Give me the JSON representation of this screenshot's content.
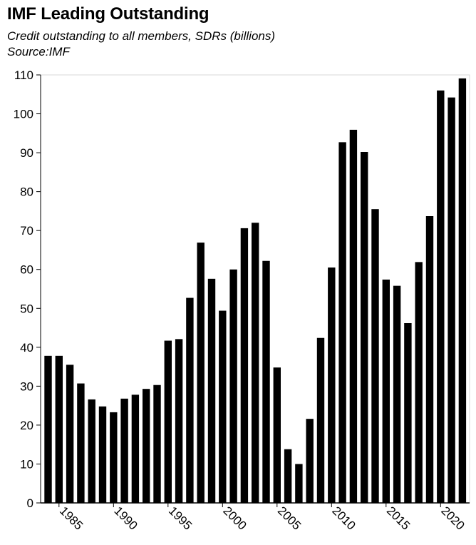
{
  "chart_data": {
    "type": "bar",
    "title": "IMF Leading Outstanding",
    "subtitle": "Credit outstanding to all members, SDRs (billions)",
    "source": "Source:IMF",
    "xlabel": "",
    "ylabel": "",
    "categories": [
      1984,
      1985,
      1986,
      1987,
      1988,
      1989,
      1990,
      1991,
      1992,
      1993,
      1994,
      1995,
      1996,
      1997,
      1998,
      1999,
      2000,
      2001,
      2002,
      2003,
      2004,
      2005,
      2006,
      2007,
      2008,
      2009,
      2010,
      2011,
      2012,
      2013,
      2014,
      2015,
      2016,
      2017,
      2018,
      2019,
      2020,
      2021,
      2022
    ],
    "values": [
      37.8,
      37.8,
      35.5,
      30.7,
      26.6,
      24.8,
      23.3,
      26.8,
      27.8,
      29.3,
      30.3,
      41.7,
      42.1,
      52.7,
      66.9,
      57.6,
      49.4,
      60.0,
      70.6,
      72.0,
      62.2,
      34.8,
      13.8,
      10.0,
      21.6,
      42.4,
      60.5,
      92.7,
      95.9,
      90.2,
      75.5,
      57.4,
      55.8,
      46.2,
      61.9,
      73.7,
      106.0,
      104.2,
      109.1
    ],
    "ylim": [
      0,
      110
    ],
    "yticks": [
      0,
      10,
      20,
      30,
      40,
      50,
      60,
      70,
      80,
      90,
      100,
      110
    ],
    "xticks": [
      1985,
      1990,
      1995,
      2000,
      2005,
      2010,
      2015,
      2020
    ],
    "grid": false,
    "legend": "none",
    "bar_color": "#000000",
    "axis_color": "#000000",
    "frame_color": "#d9d9d9"
  }
}
